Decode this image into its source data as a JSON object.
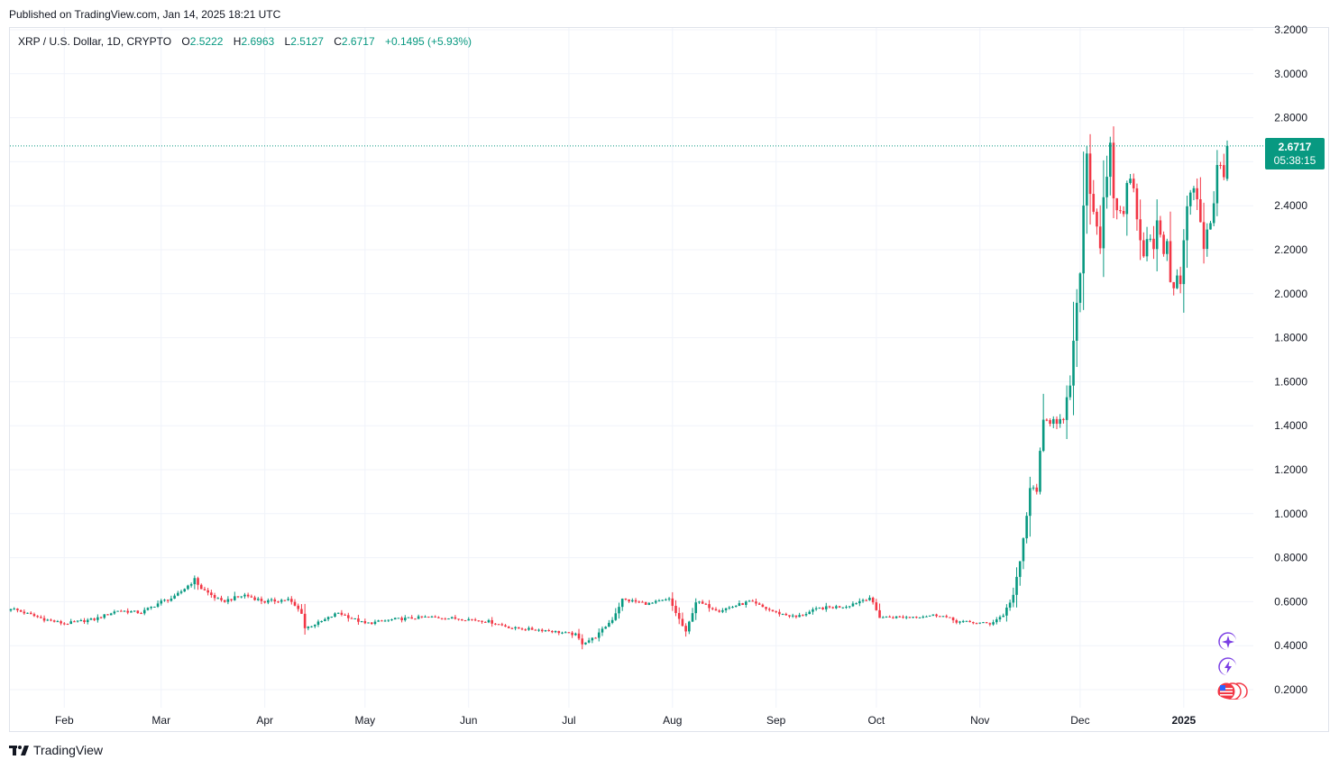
{
  "published": "Published on TradingView.com, Jan 14, 2025 18:21 UTC",
  "legend": {
    "symbol": "XRP / U.S. Dollar, 1D, CRYPTO",
    "o_label": "O",
    "o": "2.5222",
    "h_label": "H",
    "h": "2.6963",
    "l_label": "L",
    "l": "2.5127",
    "c_label": "C",
    "c": "2.6717",
    "change": "+0.1495 (+5.93%)"
  },
  "price_tag": {
    "price": "2.6717",
    "countdown": "05:38:15"
  },
  "brand": "TradingView",
  "colors": {
    "up": "#089981",
    "down": "#f23645",
    "grid": "#f0f3fa",
    "text": "#131722"
  },
  "chart_data": {
    "type": "candlestick",
    "title": "",
    "xlabel": "",
    "ylabel": "",
    "ylim": [
      0.13,
      3.22
    ],
    "y_ticks": [
      "0.2000",
      "0.4000",
      "0.6000",
      "0.8000",
      "1.0000",
      "1.2000",
      "1.4000",
      "1.6000",
      "1.8000",
      "2.0000",
      "2.2000",
      "2.4000",
      "2.6000",
      "2.8000",
      "3.0000",
      "3.2000"
    ],
    "x_ticks": [
      {
        "label": "Feb",
        "date": "2024-02-01"
      },
      {
        "label": "Mar",
        "date": "2024-03-01"
      },
      {
        "label": "Apr",
        "date": "2024-04-01"
      },
      {
        "label": "May",
        "date": "2024-05-01"
      },
      {
        "label": "Jun",
        "date": "2024-06-01"
      },
      {
        "label": "Jul",
        "date": "2024-07-01"
      },
      {
        "label": "Aug",
        "date": "2024-08-01"
      },
      {
        "label": "Sep",
        "date": "2024-09-01"
      },
      {
        "label": "Oct",
        "date": "2024-10-01"
      },
      {
        "label": "Nov",
        "date": "2024-11-01"
      },
      {
        "label": "Dec",
        "date": "2024-12-01"
      },
      {
        "label": "2025",
        "date": "2025-01-01"
      }
    ],
    "date_range": [
      "2024-01-16",
      "2025-01-14"
    ],
    "close_anchors": [
      [
        "2024-01-16",
        0.57
      ],
      [
        "2024-01-20",
        0.55
      ],
      [
        "2024-01-26",
        0.52
      ],
      [
        "2024-02-01",
        0.5
      ],
      [
        "2024-02-10",
        0.52
      ],
      [
        "2024-02-17",
        0.56
      ],
      [
        "2024-02-24",
        0.55
      ],
      [
        "2024-03-01",
        0.6
      ],
      [
        "2024-03-05",
        0.62
      ],
      [
        "2024-03-11",
        0.7
      ],
      [
        "2024-03-13",
        0.66
      ],
      [
        "2024-03-19",
        0.6
      ],
      [
        "2024-03-26",
        0.63
      ],
      [
        "2024-04-01",
        0.6
      ],
      [
        "2024-04-08",
        0.61
      ],
      [
        "2024-04-12",
        0.55
      ],
      [
        "2024-04-13",
        0.48
      ],
      [
        "2024-04-18",
        0.51
      ],
      [
        "2024-04-23",
        0.55
      ],
      [
        "2024-05-01",
        0.5
      ],
      [
        "2024-05-10",
        0.52
      ],
      [
        "2024-05-20",
        0.53
      ],
      [
        "2024-06-01",
        0.52
      ],
      [
        "2024-06-07",
        0.51
      ],
      [
        "2024-06-14",
        0.48
      ],
      [
        "2024-06-24",
        0.47
      ],
      [
        "2024-07-03",
        0.45
      ],
      [
        "2024-07-05",
        0.41
      ],
      [
        "2024-07-09",
        0.44
      ],
      [
        "2024-07-14",
        0.52
      ],
      [
        "2024-07-17",
        0.61
      ],
      [
        "2024-07-25",
        0.59
      ],
      [
        "2024-07-31",
        0.61
      ],
      [
        "2024-08-05",
        0.46
      ],
      [
        "2024-08-08",
        0.6
      ],
      [
        "2024-08-15",
        0.56
      ],
      [
        "2024-08-24",
        0.6
      ],
      [
        "2024-09-01",
        0.55
      ],
      [
        "2024-09-07",
        0.53
      ],
      [
        "2024-09-14",
        0.57
      ],
      [
        "2024-09-22",
        0.58
      ],
      [
        "2024-09-29",
        0.62
      ],
      [
        "2024-10-02",
        0.53
      ],
      [
        "2024-10-10",
        0.53
      ],
      [
        "2024-10-20",
        0.54
      ],
      [
        "2024-10-25",
        0.51
      ],
      [
        "2024-11-04",
        0.5
      ],
      [
        "2024-11-08",
        0.54
      ],
      [
        "2024-11-11",
        0.63
      ],
      [
        "2024-11-13",
        0.78
      ],
      [
        "2024-11-16",
        1.1
      ],
      [
        "2024-11-18",
        1.12
      ],
      [
        "2024-11-20",
        1.4
      ],
      [
        "2024-11-23",
        1.45
      ],
      [
        "2024-11-26",
        1.4
      ],
      [
        "2024-11-28",
        1.6
      ],
      [
        "2024-11-30",
        1.9
      ],
      [
        "2024-12-02",
        2.4
      ],
      [
        "2024-12-03",
        2.65
      ],
      [
        "2024-12-05",
        2.4
      ],
      [
        "2024-12-07",
        2.25
      ],
      [
        "2024-12-10",
        2.6
      ],
      [
        "2024-12-12",
        2.35
      ],
      [
        "2024-12-15",
        2.45
      ],
      [
        "2024-12-17",
        2.55
      ],
      [
        "2024-12-19",
        2.25
      ],
      [
        "2024-12-22",
        2.2
      ],
      [
        "2024-12-25",
        2.3
      ],
      [
        "2024-12-28",
        2.1
      ],
      [
        "2024-12-31",
        2.03
      ],
      [
        "2025-01-02",
        2.4
      ],
      [
        "2025-01-05",
        2.45
      ],
      [
        "2025-01-07",
        2.25
      ],
      [
        "2025-01-09",
        2.35
      ],
      [
        "2025-01-11",
        2.55
      ],
      [
        "2025-01-13",
        2.52
      ],
      [
        "2025-01-14",
        2.6717
      ]
    ],
    "last_candle": {
      "open": 2.5222,
      "high": 2.6963,
      "low": 2.5127,
      "close": 2.6717
    },
    "last_price": 2.6717
  }
}
